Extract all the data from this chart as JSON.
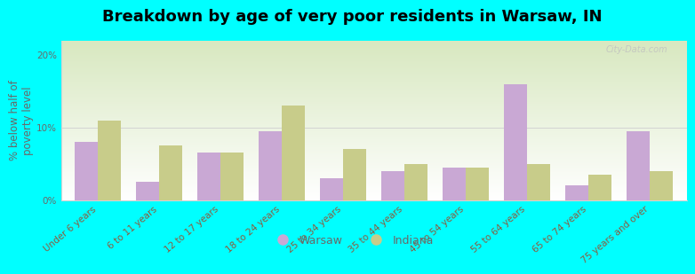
{
  "categories": [
    "Under 6 years",
    "6 to 11 years",
    "12 to 17 years",
    "18 to 24 years",
    "25 to 34 years",
    "35 to 44 years",
    "45 to 54 years",
    "55 to 64 years",
    "65 to 74 years",
    "75 years and over"
  ],
  "warsaw_values": [
    8.0,
    2.5,
    6.5,
    9.5,
    3.0,
    4.0,
    4.5,
    16.0,
    2.0,
    9.5
  ],
  "indiana_values": [
    11.0,
    7.5,
    6.5,
    13.0,
    7.0,
    5.0,
    4.5,
    5.0,
    3.5,
    4.0
  ],
  "warsaw_color": "#c9a8d4",
  "indiana_color": "#c8cc8a",
  "title": "Breakdown by age of very poor residents in Warsaw, IN",
  "ylabel": "% below half of\npoverty level",
  "ylim": [
    0,
    22
  ],
  "yticks": [
    0,
    10,
    20
  ],
  "ytick_labels": [
    "0%",
    "10%",
    "20%"
  ],
  "background_color": "#00ffff",
  "bar_width": 0.38,
  "title_fontsize": 13,
  "axis_label_fontsize": 8.5,
  "tick_fontsize": 7.5,
  "legend_labels": [
    "Warsaw",
    "Indiana"
  ],
  "watermark": "City-Data.com"
}
